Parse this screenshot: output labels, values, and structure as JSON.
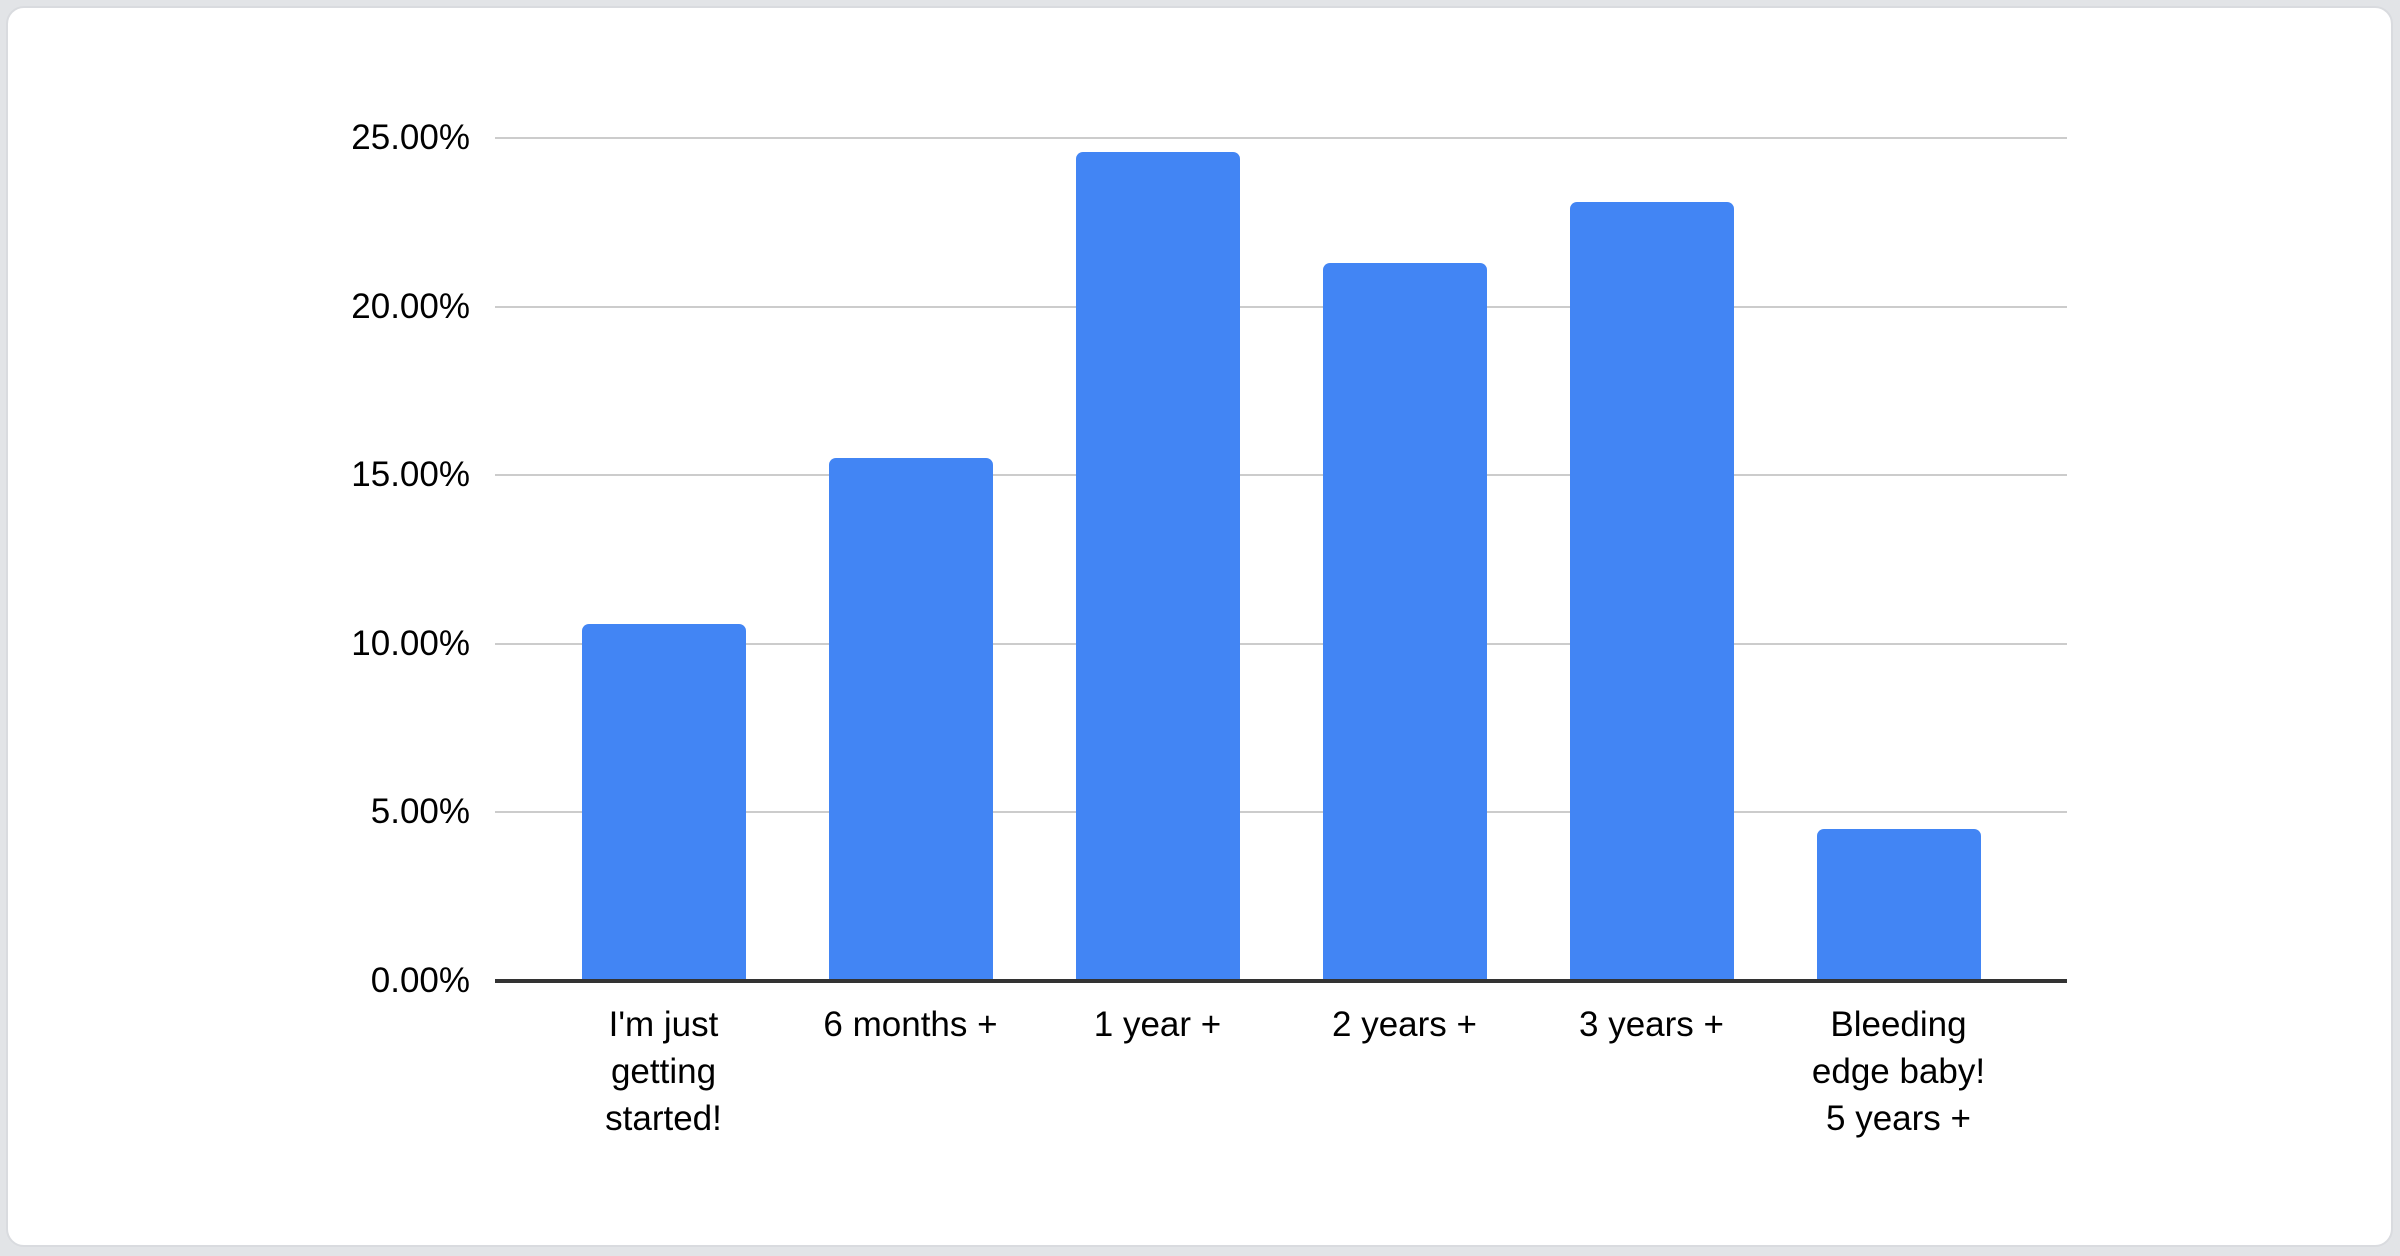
{
  "page": {
    "background_color": "#e2e4e7",
    "card_background": "#ffffff",
    "card_border_color": "#d9dbdf"
  },
  "chart_data": {
    "type": "bar",
    "title": "",
    "xlabel": "",
    "ylabel": "",
    "legend": "none",
    "grid": true,
    "unit": "%",
    "categories": [
      "I'm just getting started!",
      "6 months +",
      "1 year +",
      "2 years +",
      "3 years +",
      "Bleeding edge baby! 5 years +"
    ],
    "category_display_lines": [
      [
        "I'm just",
        "getting",
        "started!"
      ],
      [
        "6 months +"
      ],
      [
        "1 year +"
      ],
      [
        "2 years +"
      ],
      [
        "3 years +"
      ],
      [
        "Bleeding",
        "edge baby!",
        "5 years +"
      ]
    ],
    "values": [
      10.6,
      15.5,
      24.6,
      21.3,
      23.1,
      4.5
    ],
    "ylim": [
      0,
      25
    ],
    "y_ticks": [
      {
        "value": 0,
        "label": "0.00%"
      },
      {
        "value": 5,
        "label": "5.00%"
      },
      {
        "value": 10,
        "label": "10.00%"
      },
      {
        "value": 15,
        "label": "15.00%"
      },
      {
        "value": 20,
        "label": "20.00%"
      },
      {
        "value": 25,
        "label": "25.00%"
      }
    ],
    "bar_color": "#4285f4",
    "gridline_color": "#cccccc",
    "axis_line_color": "#333333",
    "text_color": "#000000"
  }
}
